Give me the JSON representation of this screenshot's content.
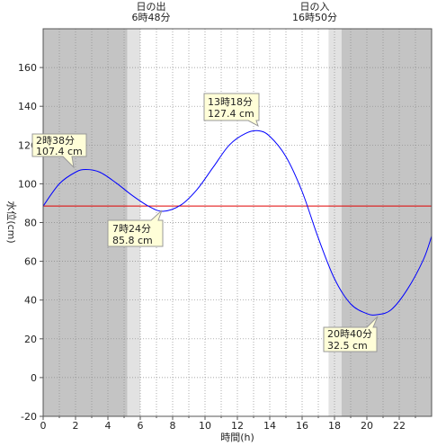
{
  "chart_data": {
    "type": "line",
    "xlabel": "時間(h)",
    "ylabel": "水位(cm)",
    "xlim": [
      0,
      24
    ],
    "ylim": [
      -20,
      180
    ],
    "x_ticks": [
      0,
      2,
      4,
      6,
      8,
      10,
      12,
      14,
      16,
      18,
      20,
      22
    ],
    "y_ticks": [
      -20,
      0,
      20,
      40,
      60,
      80,
      100,
      120,
      140,
      160
    ],
    "grid": true,
    "reference_line": {
      "y": 88.5,
      "color": "#e00000"
    },
    "series": [
      {
        "color": "#0000ff",
        "x": [
          0,
          1,
          2,
          2.633,
          3.5,
          4.5,
          5.5,
          6.5,
          7.4,
          8.5,
          9.5,
          10.5,
          11.5,
          12.5,
          13.3,
          14,
          15,
          16,
          17,
          18,
          19,
          20,
          20.667,
          21.5,
          22.5,
          23.5,
          24
        ],
        "y": [
          88.5,
          100,
          106,
          107.4,
          106,
          100.5,
          94,
          88.5,
          85.8,
          89,
          97,
          108.5,
          120,
          126,
          127.4,
          124.5,
          114,
          96,
          72,
          51,
          38,
          33,
          32.5,
          35,
          45.5,
          61,
          73
        ]
      }
    ],
    "annotations": [
      {
        "id": "high1",
        "time": "2時38分",
        "level": "107.4 cm",
        "x": 2.633,
        "y": 107.4
      },
      {
        "id": "low1",
        "time": "7時24分",
        "level": "85.8 cm",
        "x": 7.4,
        "y": 85.8
      },
      {
        "id": "high2",
        "time": "13時18分",
        "level": "127.4 cm",
        "x": 13.3,
        "y": 127.4
      },
      {
        "id": "low2",
        "time": "20時40分",
        "level": "32.5 cm",
        "x": 20.667,
        "y": 32.5
      }
    ],
    "sunrise": {
      "label": "日の出",
      "time": "6時48分",
      "x": 6.8
    },
    "sunset": {
      "label": "日の入",
      "time": "16時50分",
      "x": 16.833
    },
    "colors": {
      "night": "#c4c4c4",
      "twilight": "#e2e2e2",
      "day": "#ffffff"
    }
  }
}
